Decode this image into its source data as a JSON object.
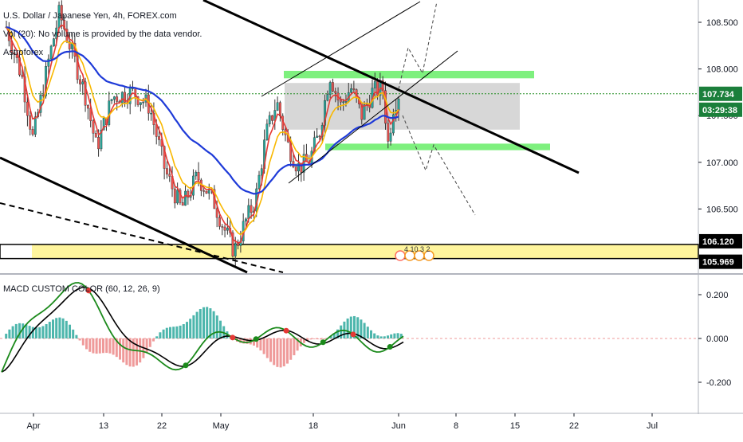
{
  "header": {
    "symbol_line": "U.S. Dollar / Japanese Yen, 4h, FOREX.com",
    "volume_line": "Vol (20): No volume is provided by the data vendor.",
    "author_line": "Astroforex"
  },
  "badges": {
    "price_current": "107.734",
    "countdown": "03:29:38",
    "level_upper": "106.120",
    "level_lower": "105.969",
    "event_counts": "4 10 3 2"
  },
  "macd": {
    "title": "MACD CUSTOM COLOR (60, 12, 26, 9)"
  },
  "colors": {
    "candle_up": "#26a69a",
    "candle_down": "#ef5350",
    "ma_fast": "#e53935",
    "ma_mid": "#f9b800",
    "ma_slow": "#1e3ad8",
    "zone_gray": "#c9c9c9",
    "zone_green": "#7ef07e",
    "zone_yellow": "#fff59d",
    "macd_line": "#1b8a1b",
    "signal_line": "#000000",
    "hist_pos": "#4db6ac",
    "hist_neg": "#ef9a9a",
    "badge_green": "#1b7f3b"
  },
  "chart_data": [
    {
      "type": "candlestick",
      "title": "U.S. Dollar / Japanese Yen, 4h, FOREX.com",
      "x_tick_labels": [
        "Apr",
        "13",
        "22",
        "May",
        "18",
        "Jun",
        "8",
        "15",
        "22",
        "Jul"
      ],
      "y_tick_labels": [
        "108.500",
        "108.000",
        "107.500",
        "107.000",
        "106.500"
      ],
      "ylim": [
        105.8,
        108.9
      ],
      "price_path": [
        {
          "t": 0,
          "p": 108.45
        },
        {
          "t": 3,
          "p": 107.9
        },
        {
          "t": 5,
          "p": 107.25
        },
        {
          "t": 8,
          "p": 108.1
        },
        {
          "t": 10,
          "p": 108.6
        },
        {
          "t": 12,
          "p": 108.25
        },
        {
          "t": 15,
          "p": 107.7
        },
        {
          "t": 17,
          "p": 107.15
        },
        {
          "t": 20,
          "p": 107.7
        },
        {
          "t": 24,
          "p": 107.75
        },
        {
          "t": 27,
          "p": 107.6
        },
        {
          "t": 30,
          "p": 106.9
        },
        {
          "t": 33,
          "p": 106.5
        },
        {
          "t": 36,
          "p": 106.85
        },
        {
          "t": 39,
          "p": 106.6
        },
        {
          "t": 41,
          "p": 106.3
        },
        {
          "t": 43,
          "p": 106.05
        },
        {
          "t": 45,
          "p": 106.35
        },
        {
          "t": 47,
          "p": 106.6
        },
        {
          "t": 49,
          "p": 107.3
        },
        {
          "t": 51,
          "p": 107.65
        },
        {
          "t": 53,
          "p": 107.2
        },
        {
          "t": 55,
          "p": 106.95
        },
        {
          "t": 57,
          "p": 107.0
        },
        {
          "t": 59,
          "p": 107.3
        },
        {
          "t": 61,
          "p": 107.95
        },
        {
          "t": 63,
          "p": 107.6
        },
        {
          "t": 65,
          "p": 107.8
        },
        {
          "t": 67,
          "p": 107.5
        },
        {
          "t": 69,
          "p": 107.75
        },
        {
          "t": 71,
          "p": 107.8
        },
        {
          "t": 72,
          "p": 107.2
        },
        {
          "t": 73,
          "p": 107.6
        },
        {
          "t": 74,
          "p": 107.734
        }
      ],
      "zones": [
        {
          "name": "gray-range",
          "y": [
            107.35,
            107.85
          ]
        },
        {
          "name": "green-upper",
          "y": [
            107.9,
            107.98
          ]
        },
        {
          "name": "green-lower",
          "y": [
            107.13,
            107.2
          ]
        },
        {
          "name": "yellow-support",
          "y": [
            105.969,
            106.12
          ]
        }
      ],
      "current_price": 107.734
    },
    {
      "type": "histogram",
      "title": "MACD CUSTOM COLOR (60, 12, 26, 9)",
      "y_tick_labels": [
        "0.200",
        "0.000",
        "-0.200"
      ],
      "ylim": [
        -0.3,
        0.26
      ]
    }
  ]
}
